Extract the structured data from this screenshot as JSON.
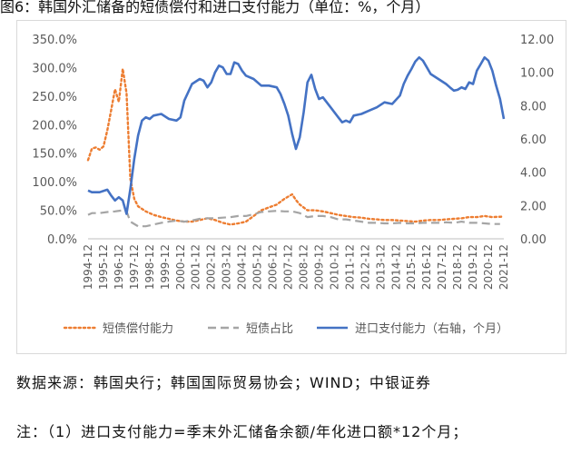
{
  "caption": "图6：韩国外汇储备的短债偿付和进口支付能力（单位：%，个月）",
  "notes": {
    "source": "数据来源：韩国央行；韩国国际贸易协会；WIND；中银证券",
    "note1": "注：（1）进口支付能力=季末外汇储备余额/年化进口额*12个月；"
  },
  "chart_data": {
    "type": "line",
    "title": "",
    "x_labels": [
      "1994-12",
      "1995-12",
      "1996-12",
      "1997-12",
      "1998-12",
      "1999-12",
      "2000-12",
      "2001-12",
      "2002-12",
      "2003-12",
      "2004-12",
      "2005-12",
      "2006-12",
      "2007-12",
      "2008-12",
      "2009-12",
      "2010-12",
      "2011-12",
      "2012-12",
      "2013-12",
      "2014-12",
      "2015-12",
      "2016-12",
      "2017-12",
      "2018-12",
      "2019-12",
      "2020-12",
      "2021-12"
    ],
    "x_start": 1994.75,
    "x_end": 2021.75,
    "y_left": {
      "min": 0,
      "max": 350,
      "ticks": [
        "0.0%",
        "50.0%",
        "100.0%",
        "150.0%",
        "200.0%",
        "250.0%",
        "300.0%",
        "350.0%"
      ]
    },
    "y_right": {
      "min": 0,
      "max": 12,
      "ticks": [
        "0.00",
        "2.00",
        "4.00",
        "6.00",
        "8.00",
        "10.00",
        "12.00"
      ],
      "label": "右轴，个月"
    },
    "legend_position": "bottom",
    "series": [
      {
        "name": "短债偿付能力",
        "axis": "left",
        "style": "dotted",
        "color": "#ED7D31",
        "points": [
          [
            1994.75,
            138
          ],
          [
            1995.0,
            158
          ],
          [
            1995.25,
            160
          ],
          [
            1995.5,
            156
          ],
          [
            1995.75,
            162
          ],
          [
            1996.0,
            190
          ],
          [
            1996.25,
            225
          ],
          [
            1996.5,
            262
          ],
          [
            1996.75,
            240
          ],
          [
            1997.0,
            298
          ],
          [
            1997.25,
            255
          ],
          [
            1997.5,
            105
          ],
          [
            1997.75,
            70
          ],
          [
            1998.0,
            57
          ],
          [
            1998.5,
            48
          ],
          [
            1999.0,
            42
          ],
          [
            1999.5,
            38
          ],
          [
            2000.0,
            35
          ],
          [
            2000.5,
            32
          ],
          [
            2001.0,
            30
          ],
          [
            2001.5,
            30
          ],
          [
            2002.0,
            33
          ],
          [
            2002.5,
            36
          ],
          [
            2003.0,
            33
          ],
          [
            2003.5,
            28
          ],
          [
            2004.0,
            25
          ],
          [
            2004.5,
            27
          ],
          [
            2005.0,
            30
          ],
          [
            2005.5,
            40
          ],
          [
            2006.0,
            50
          ],
          [
            2006.5,
            55
          ],
          [
            2007.0,
            60
          ],
          [
            2007.5,
            70
          ],
          [
            2008.0,
            78
          ],
          [
            2008.25,
            68
          ],
          [
            2008.5,
            60
          ],
          [
            2009.0,
            50
          ],
          [
            2009.5,
            50
          ],
          [
            2010.0,
            48
          ],
          [
            2010.5,
            45
          ],
          [
            2011.0,
            42
          ],
          [
            2011.5,
            40
          ],
          [
            2012.0,
            38
          ],
          [
            2012.5,
            37
          ],
          [
            2013.0,
            35
          ],
          [
            2013.5,
            34
          ],
          [
            2014.0,
            33
          ],
          [
            2014.5,
            33
          ],
          [
            2015.0,
            32
          ],
          [
            2015.5,
            31
          ],
          [
            2016.0,
            30
          ],
          [
            2016.5,
            32
          ],
          [
            2017.0,
            33
          ],
          [
            2017.5,
            33
          ],
          [
            2018.0,
            34
          ],
          [
            2018.5,
            35
          ],
          [
            2019.0,
            36
          ],
          [
            2019.5,
            38
          ],
          [
            2020.0,
            38
          ],
          [
            2020.5,
            40
          ],
          [
            2021.0,
            38
          ],
          [
            2021.75,
            39
          ]
        ]
      },
      {
        "name": "短债占比",
        "axis": "left",
        "style": "dashed",
        "color": "#A5A5A5",
        "points": [
          [
            1994.75,
            42
          ],
          [
            1995.0,
            45
          ],
          [
            1995.5,
            45
          ],
          [
            1996.0,
            47
          ],
          [
            1996.5,
            48
          ],
          [
            1997.0,
            50
          ],
          [
            1997.25,
            48
          ],
          [
            1997.5,
            30
          ],
          [
            1998.0,
            22
          ],
          [
            1998.5,
            22
          ],
          [
            1999.0,
            25
          ],
          [
            1999.5,
            28
          ],
          [
            2000.0,
            30
          ],
          [
            2000.5,
            32
          ],
          [
            2001.0,
            30
          ],
          [
            2001.5,
            32
          ],
          [
            2002.0,
            35
          ],
          [
            2002.5,
            36
          ],
          [
            2003.0,
            36
          ],
          [
            2003.5,
            37
          ],
          [
            2004.0,
            38
          ],
          [
            2004.5,
            40
          ],
          [
            2005.0,
            40
          ],
          [
            2005.5,
            43
          ],
          [
            2006.0,
            47
          ],
          [
            2006.5,
            48
          ],
          [
            2007.0,
            49
          ],
          [
            2007.5,
            48
          ],
          [
            2008.0,
            48
          ],
          [
            2008.5,
            45
          ],
          [
            2009.0,
            38
          ],
          [
            2009.5,
            40
          ],
          [
            2010.0,
            40
          ],
          [
            2010.5,
            38
          ],
          [
            2011.0,
            34
          ],
          [
            2011.5,
            34
          ],
          [
            2012.0,
            32
          ],
          [
            2012.5,
            30
          ],
          [
            2013.0,
            28
          ],
          [
            2013.5,
            28
          ],
          [
            2014.0,
            27
          ],
          [
            2014.5,
            27
          ],
          [
            2015.0,
            28
          ],
          [
            2015.5,
            27
          ],
          [
            2016.0,
            27
          ],
          [
            2016.5,
            28
          ],
          [
            2017.0,
            28
          ],
          [
            2017.5,
            28
          ],
          [
            2018.0,
            29
          ],
          [
            2018.5,
            28
          ],
          [
            2019.0,
            30
          ],
          [
            2019.5,
            28
          ],
          [
            2020.0,
            28
          ],
          [
            2020.5,
            27
          ],
          [
            2021.0,
            26
          ],
          [
            2021.5,
            26
          ]
        ]
      },
      {
        "name": "进口支付能力（右轴，个月）",
        "axis": "right",
        "style": "solid",
        "color": "#4472C4",
        "points": [
          [
            1994.75,
            2.9
          ],
          [
            1995.0,
            2.8
          ],
          [
            1995.5,
            2.8
          ],
          [
            1996.0,
            2.95
          ],
          [
            1996.25,
            2.6
          ],
          [
            1996.5,
            2.3
          ],
          [
            1996.75,
            2.5
          ],
          [
            1997.0,
            2.3
          ],
          [
            1997.25,
            1.5
          ],
          [
            1997.5,
            3.0
          ],
          [
            1997.75,
            4.8
          ],
          [
            1998.0,
            6.2
          ],
          [
            1998.25,
            7.1
          ],
          [
            1998.5,
            7.3
          ],
          [
            1998.75,
            7.2
          ],
          [
            1999.0,
            7.4
          ],
          [
            1999.5,
            7.5
          ],
          [
            2000.0,
            7.2
          ],
          [
            2000.5,
            7.1
          ],
          [
            2000.75,
            7.3
          ],
          [
            2001.0,
            8.3
          ],
          [
            2001.5,
            9.3
          ],
          [
            2002.0,
            9.6
          ],
          [
            2002.25,
            9.5
          ],
          [
            2002.5,
            9.1
          ],
          [
            2002.75,
            9.4
          ],
          [
            2003.0,
            10.0
          ],
          [
            2003.25,
            10.4
          ],
          [
            2003.5,
            10.3
          ],
          [
            2003.75,
            9.9
          ],
          [
            2004.0,
            9.9
          ],
          [
            2004.25,
            10.6
          ],
          [
            2004.5,
            10.5
          ],
          [
            2004.75,
            10.1
          ],
          [
            2005.0,
            9.8
          ],
          [
            2005.5,
            9.6
          ],
          [
            2006.0,
            9.2
          ],
          [
            2006.5,
            9.2
          ],
          [
            2007.0,
            9.1
          ],
          [
            2007.25,
            8.7
          ],
          [
            2007.5,
            8.1
          ],
          [
            2007.75,
            7.4
          ],
          [
            2008.0,
            6.3
          ],
          [
            2008.25,
            5.4
          ],
          [
            2008.5,
            6.1
          ],
          [
            2008.75,
            7.6
          ],
          [
            2009.0,
            9.4
          ],
          [
            2009.25,
            9.85
          ],
          [
            2009.5,
            9.0
          ],
          [
            2009.75,
            8.4
          ],
          [
            2010.0,
            8.5
          ],
          [
            2010.5,
            7.9
          ],
          [
            2011.0,
            7.3
          ],
          [
            2011.25,
            7.0
          ],
          [
            2011.5,
            7.1
          ],
          [
            2011.75,
            7.0
          ],
          [
            2012.0,
            7.4
          ],
          [
            2012.5,
            7.5
          ],
          [
            2013.0,
            7.7
          ],
          [
            2013.5,
            7.9
          ],
          [
            2014.0,
            8.2
          ],
          [
            2014.5,
            8.1
          ],
          [
            2015.0,
            8.6
          ],
          [
            2015.25,
            9.3
          ],
          [
            2015.5,
            9.8
          ],
          [
            2015.75,
            10.2
          ],
          [
            2016.0,
            10.65
          ],
          [
            2016.25,
            10.9
          ],
          [
            2016.5,
            10.7
          ],
          [
            2016.75,
            10.3
          ],
          [
            2017.0,
            9.9
          ],
          [
            2017.5,
            9.6
          ],
          [
            2018.0,
            9.3
          ],
          [
            2018.25,
            9.1
          ],
          [
            2018.5,
            8.9
          ],
          [
            2018.75,
            8.95
          ],
          [
            2019.0,
            9.1
          ],
          [
            2019.25,
            9.0
          ],
          [
            2019.5,
            9.4
          ],
          [
            2019.75,
            9.3
          ],
          [
            2020.0,
            10.1
          ],
          [
            2020.25,
            10.5
          ],
          [
            2020.5,
            10.9
          ],
          [
            2020.75,
            10.7
          ],
          [
            2021.0,
            10.1
          ],
          [
            2021.25,
            9.2
          ],
          [
            2021.5,
            8.4
          ],
          [
            2021.75,
            7.2
          ]
        ]
      }
    ]
  }
}
